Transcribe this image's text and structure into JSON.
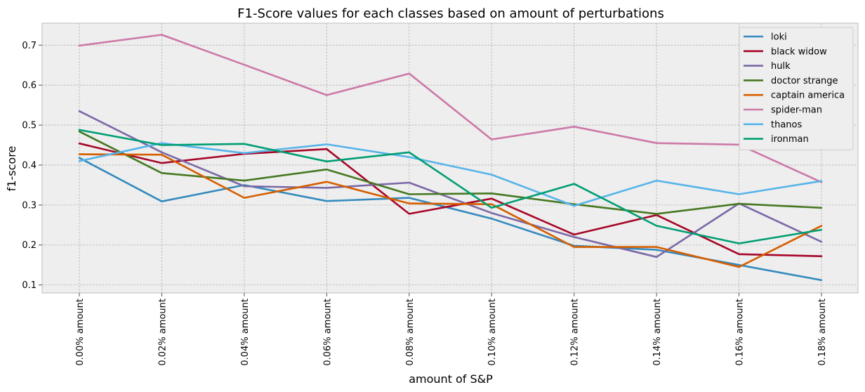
{
  "chart_data": {
    "type": "line",
    "title": "F1-Score values for each classes based on amount of perturbations",
    "xlabel": "amount of S&P",
    "ylabel": "f1-score",
    "ylim": [
      0.08,
      0.755
    ],
    "yticks": [
      "0.1",
      "0.2",
      "0.3",
      "0.4",
      "0.5",
      "0.6",
      "0.7"
    ],
    "grid": true,
    "legend_position": "top-right",
    "categories": [
      "0.00% amount",
      "0.02% amount",
      "0.04% amount",
      "0.06% amount",
      "0.08% amount",
      "0.10% amount",
      "0.12% amount",
      "0.14% amount",
      "0.16% amount",
      "0.18% amount"
    ],
    "series": [
      {
        "name": "loki",
        "color": "#348ABD",
        "values": [
          0.418,
          0.309,
          0.35,
          0.31,
          0.318,
          0.266,
          0.198,
          0.188,
          0.15,
          0.112
        ]
      },
      {
        "name": "black widow",
        "color": "#A60628",
        "values": [
          0.454,
          0.405,
          0.428,
          0.44,
          0.278,
          0.316,
          0.226,
          0.275,
          0.177,
          0.172
        ]
      },
      {
        "name": "hulk",
        "color": "#7A68A6",
        "values": [
          0.535,
          0.432,
          0.347,
          0.343,
          0.356,
          0.28,
          0.22,
          0.17,
          0.304,
          0.208
        ]
      },
      {
        "name": "doctor strange",
        "color": "#467821",
        "values": [
          0.484,
          0.38,
          0.361,
          0.389,
          0.327,
          0.329,
          0.302,
          0.278,
          0.303,
          0.293
        ]
      },
      {
        "name": "captain america",
        "color": "#D55E00",
        "values": [
          0.427,
          0.426,
          0.318,
          0.358,
          0.304,
          0.302,
          0.195,
          0.195,
          0.145,
          0.248
        ]
      },
      {
        "name": "spider-man",
        "color": "#CC79A7",
        "values": [
          0.699,
          0.726,
          0.651,
          0.575,
          0.629,
          0.464,
          0.496,
          0.455,
          0.451,
          0.357
        ]
      },
      {
        "name": "thanos",
        "color": "#56B4E9",
        "values": [
          0.41,
          0.455,
          0.43,
          0.452,
          0.42,
          0.376,
          0.298,
          0.361,
          0.327,
          0.36
        ]
      },
      {
        "name": "ironman",
        "color": "#009E73",
        "values": [
          0.488,
          0.45,
          0.453,
          0.409,
          0.432,
          0.293,
          0.353,
          0.248,
          0.204,
          0.238
        ]
      }
    ]
  },
  "colors": {
    "plot_background": "#EEEEEE",
    "grid": "#B0B0B0",
    "axes_edge": "#BCBCBC"
  }
}
